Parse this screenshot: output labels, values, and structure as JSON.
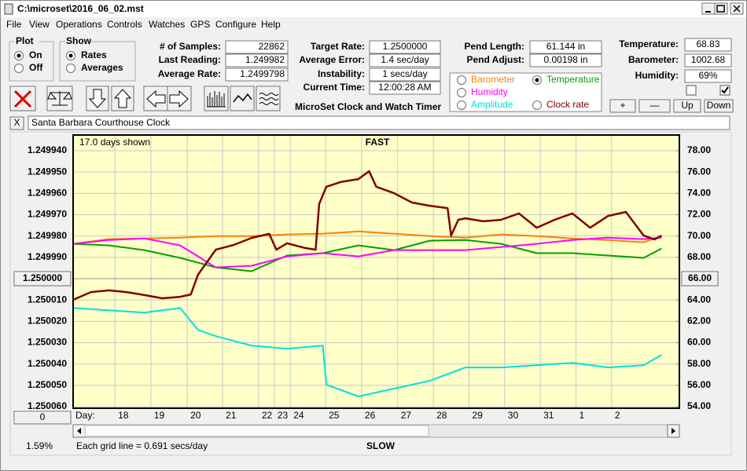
{
  "window": {
    "title": "C:\\microset\\2016_06_02.mst"
  },
  "menu": [
    "File",
    "View",
    "Operations",
    "Controls",
    "Watches",
    "GPS",
    "Configure",
    "Help"
  ],
  "plot_group": {
    "title": "Plot",
    "options": [
      "On",
      "Off"
    ],
    "selected": 0
  },
  "show_group": {
    "title": "Show",
    "options": [
      "Rates",
      "Averages"
    ],
    "selected": 0
  },
  "field_columns": [
    [
      {
        "label": "# of Samples:",
        "value": "22862"
      },
      {
        "label": "Last Reading:",
        "value": "1.249982"
      },
      {
        "label": "Average Rate:",
        "value": "1.2499798"
      }
    ],
    [
      {
        "label": "Target Rate:",
        "value": "1.2500000"
      },
      {
        "label": "Average Error:",
        "value": "1.4 sec/day"
      },
      {
        "label": "Instability:",
        "value": "1 secs/day"
      },
      {
        "label": "Current Time:",
        "value": "12:00:28 AM"
      }
    ],
    [
      {
        "label": "Pend Length:",
        "value": "61.144 in"
      },
      {
        "label": "Pend Adjust:",
        "value": "0.00198 in"
      }
    ],
    [
      {
        "label": "Temperature:",
        "value": "68.83"
      },
      {
        "label": "Barometer:",
        "value": "1002.68"
      },
      {
        "label": "Humidity:",
        "value": "69%"
      }
    ]
  ],
  "app_name": "MicroSet Clock and Watch Timer",
  "checkboxes": [
    false,
    true
  ],
  "adjust_buttons": [
    "+",
    "—",
    "Up",
    "Down"
  ],
  "close_button": "X",
  "clock_name": "Santa Barbara Courthouse Clock",
  "chart_data": {
    "type": "line",
    "top_label": "FAST",
    "bottom_label": "SLOW",
    "subtitle": "17.0 days shown",
    "footnote": "Each grid line = 0.691 secs/day",
    "status": "1.59%",
    "x_label": "Day:",
    "reset_button": "0",
    "legend_selected": 1,
    "grid": true,
    "y_inverted": true,
    "xlim": [
      0,
      17
    ],
    "xticks": [
      {
        "value": 1.17,
        "label": "18"
      },
      {
        "value": 2.18,
        "label": "19"
      },
      {
        "value": 3.2,
        "label": "20"
      },
      {
        "value": 4.19,
        "label": "21"
      },
      {
        "value": 5.2,
        "label": "22"
      },
      {
        "value": 5.64,
        "label": "23"
      },
      {
        "value": 6.09,
        "label": "24"
      },
      {
        "value": 7.08,
        "label": "25"
      },
      {
        "value": 8.09,
        "label": "26"
      },
      {
        "value": 9.1,
        "label": "27"
      },
      {
        "value": 10.1,
        "label": "28"
      },
      {
        "value": 11.1,
        "label": "29"
      },
      {
        "value": 12.1,
        "label": "30"
      },
      {
        "value": 13.1,
        "label": "31"
      },
      {
        "value": 14.1,
        "label": "1"
      },
      {
        "value": 15.1,
        "label": "2"
      }
    ],
    "ylim": [
      1.24994,
      1.25006
    ],
    "yticks": [
      {
        "value": 1.24994,
        "label": "1.249940"
      },
      {
        "value": 1.24995,
        "label": "1.249950"
      },
      {
        "value": 1.24996,
        "label": "1.249960"
      },
      {
        "value": 1.24997,
        "label": "1.249970"
      },
      {
        "value": 1.24998,
        "label": "1.249980"
      },
      {
        "value": 1.24999,
        "label": "1.249990"
      },
      {
        "value": 1.25,
        "label": "1.250000"
      },
      {
        "value": 1.25001,
        "label": "1.250010"
      },
      {
        "value": 1.25002,
        "label": "1.250020"
      },
      {
        "value": 1.25003,
        "label": "1.250030"
      },
      {
        "value": 1.25004,
        "label": "1.250040"
      },
      {
        "value": 1.25005,
        "label": "1.250050"
      },
      {
        "value": 1.25006,
        "label": "1.250060"
      }
    ],
    "y2lim": [
      54,
      78
    ],
    "y2ticks": [
      {
        "value": 78,
        "label": "78.00"
      },
      {
        "value": 76,
        "label": "76.00"
      },
      {
        "value": 74,
        "label": "74.00"
      },
      {
        "value": 72,
        "label": "72.00"
      },
      {
        "value": 70,
        "label": "70.00"
      },
      {
        "value": 68,
        "label": "68.00"
      },
      {
        "value": 66,
        "label": "66.00"
      },
      {
        "value": 64,
        "label": "64.00"
      },
      {
        "value": 62,
        "label": "62.00"
      },
      {
        "value": 60,
        "label": "60.00"
      },
      {
        "value": 58,
        "label": "58.00"
      },
      {
        "value": 56,
        "label": "56.00"
      },
      {
        "value": 54,
        "label": "54.00"
      }
    ],
    "series": [
      {
        "name": "Barometer",
        "color": "#ff8000",
        "axis": "y2",
        "x": [
          0,
          1,
          2,
          3,
          4,
          5,
          6,
          7,
          8,
          9,
          10,
          11,
          12,
          13,
          14,
          15,
          16,
          16.5
        ],
        "values": [
          69.27,
          69.71,
          69.78,
          69.85,
          70.0,
          70.0,
          70.15,
          70.22,
          70.44,
          70.22,
          70.0,
          69.85,
          70.15,
          70.0,
          69.78,
          69.63,
          69.41,
          70.0
        ]
      },
      {
        "name": "Temperature",
        "color": "#00a000",
        "axis": "y2",
        "x": [
          0,
          1,
          2,
          3,
          4,
          5,
          6,
          7,
          8,
          9,
          10,
          11,
          12,
          13,
          14,
          15,
          16,
          16.5
        ],
        "values": [
          69.27,
          69.12,
          68.68,
          67.95,
          67.06,
          66.7,
          68.17,
          68.39,
          69.12,
          68.68,
          69.56,
          69.63,
          69.27,
          68.39,
          68.39,
          68.17,
          67.95,
          68.83
        ]
      },
      {
        "name": "Humidity",
        "color": "#ff00ff",
        "axis": "y2",
        "x": [
          0,
          1,
          2,
          3,
          4,
          5,
          6,
          7,
          8,
          9,
          10,
          11,
          12,
          13,
          14,
          15,
          16,
          16.5
        ],
        "values": [
          69.27,
          69.63,
          69.78,
          69.12,
          67.06,
          67.21,
          68.09,
          68.39,
          68.09,
          68.68,
          68.68,
          68.68,
          68.97,
          69.27,
          69.63,
          69.85,
          69.71,
          69.85
        ]
      },
      {
        "name": "Amplitude",
        "color": "#00e0e0",
        "axis": "y2",
        "x": [
          0,
          1,
          2,
          3,
          3.5,
          4,
          5,
          6,
          7,
          7.1,
          8,
          9,
          10,
          11,
          12,
          13,
          14,
          15,
          16,
          16.5
        ],
        "values": [
          63.25,
          63.03,
          62.81,
          63.25,
          61.19,
          60.61,
          59.73,
          59.43,
          59.73,
          56.06,
          54.96,
          55.69,
          56.42,
          57.67,
          57.67,
          57.89,
          58.11,
          57.67,
          57.89,
          58.85
        ]
      },
      {
        "name": "Clock rate",
        "color": "#800000",
        "axis": "y",
        "x": [
          0,
          0.5,
          1,
          1.5,
          2,
          2.5,
          3,
          3.3,
          3.5,
          4,
          4.5,
          5,
          5.5,
          5.7,
          6,
          6.5,
          6.8,
          6.9,
          7.1,
          7.5,
          8,
          8.3,
          8.5,
          9,
          9.5,
          10,
          10.5,
          10.6,
          10.8,
          11,
          11.5,
          12,
          12.5,
          13,
          13.5,
          14,
          14.5,
          15,
          15.5,
          16,
          16.3,
          16.5
        ],
        "values": [
          1.2500099,
          1.2500063,
          1.2500055,
          1.2500063,
          1.2500077,
          1.2500092,
          1.2500085,
          1.2500074,
          1.2499982,
          1.2499864,
          1.2499842,
          1.2499809,
          1.249979,
          1.2499864,
          1.2499834,
          1.2499856,
          1.2499864,
          1.249965,
          1.2499569,
          1.2499547,
          1.2499533,
          1.2499496,
          1.2499569,
          1.2499599,
          1.2499643,
          1.2499658,
          1.2499669,
          1.2499798,
          1.2499724,
          1.2499717,
          1.2499731,
          1.2499724,
          1.2499694,
          1.2499761,
          1.2499724,
          1.2499694,
          1.2499761,
          1.2499706,
          1.2499687,
          1.2499798,
          1.2499816,
          1.2499798
        ]
      }
    ]
  }
}
